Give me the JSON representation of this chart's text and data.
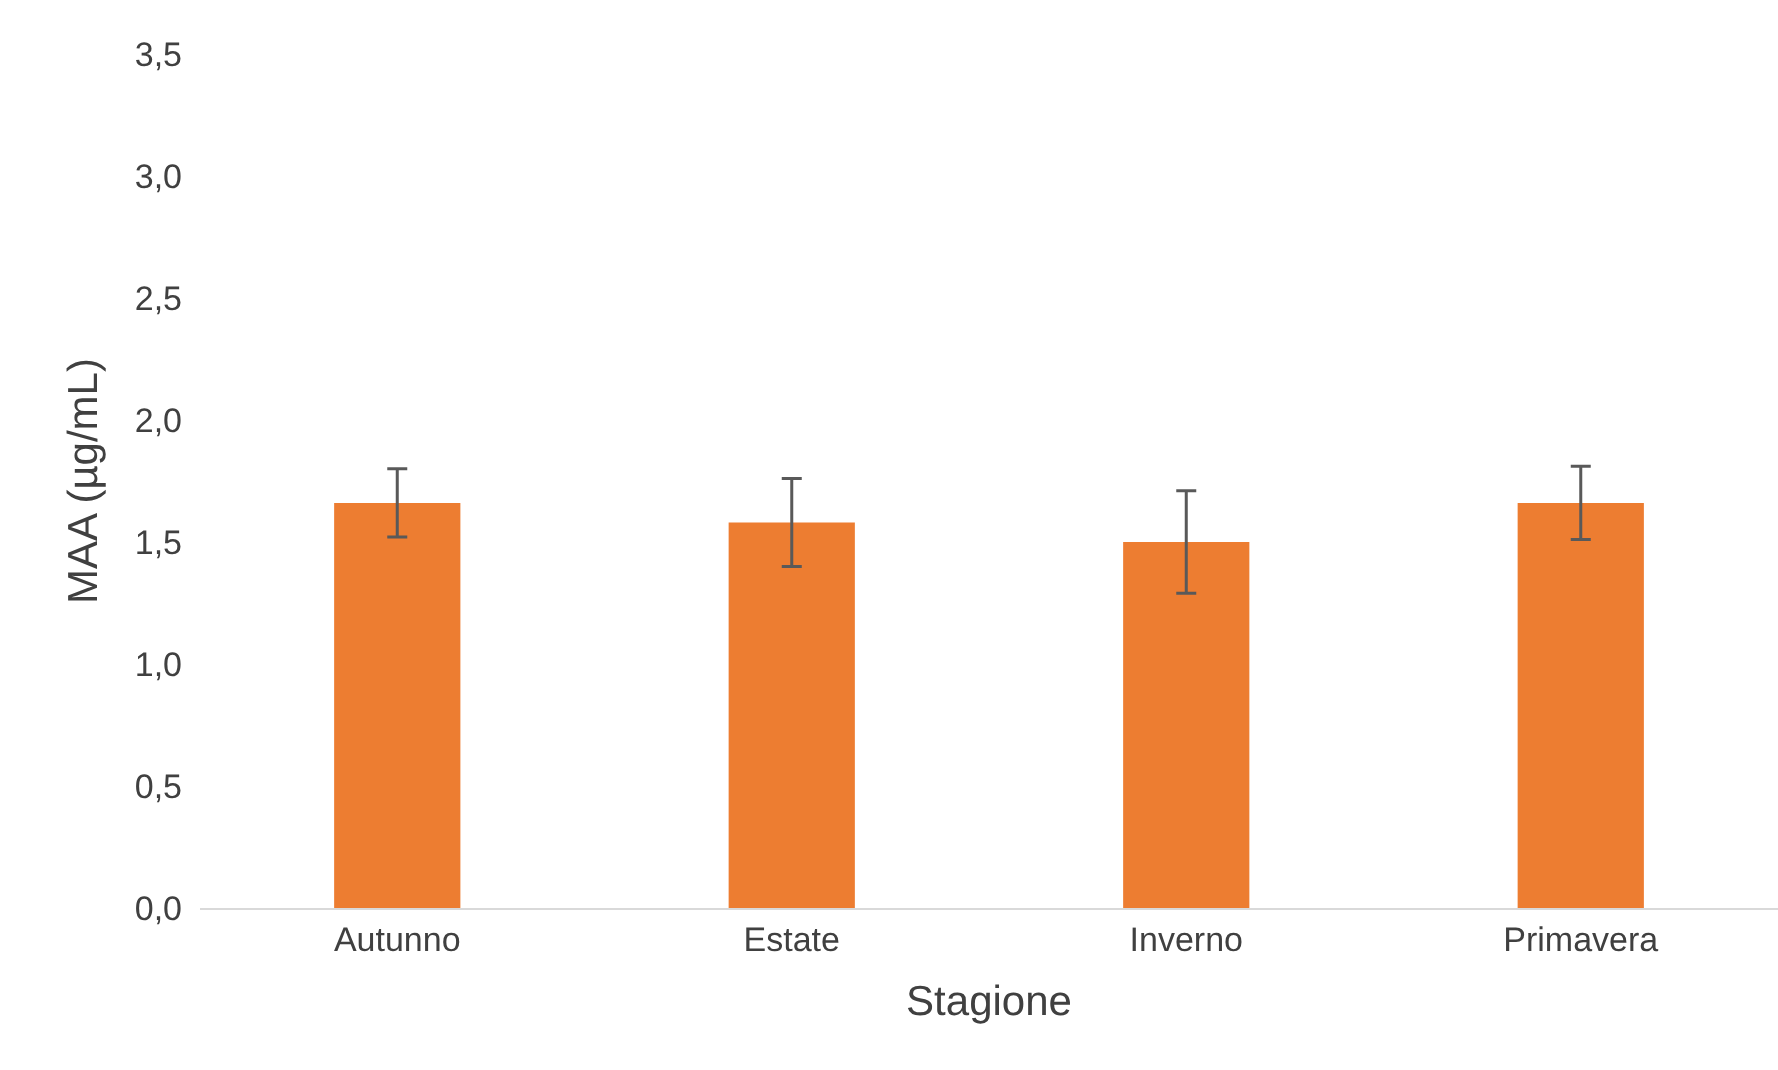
{
  "chart_data": {
    "type": "bar",
    "xlabel": "Stagione",
    "ylabel": "MAA (µg/mL)",
    "categories": [
      "Autunno",
      "Estate",
      "Inverno",
      "Primavera"
    ],
    "series": [
      {
        "color": "#ed7d31",
        "values": [
          1.66,
          1.58,
          1.5,
          1.66
        ],
        "errors": [
          0.14,
          0.18,
          0.21,
          0.15
        ]
      }
    ],
    "ylim": [
      0,
      3.5
    ],
    "yticks": [
      {
        "value": 0,
        "label": "0,0"
      },
      {
        "value": 0.5,
        "label": "0,5"
      },
      {
        "value": 1,
        "label": "1,0"
      },
      {
        "value": 1.5,
        "label": "1,5"
      },
      {
        "value": 2,
        "label": "2,0"
      },
      {
        "value": 2.5,
        "label": "2,5"
      },
      {
        "value": 3,
        "label": "3,0"
      },
      {
        "value": 3.5,
        "label": "3,5"
      }
    ],
    "grid": false
  }
}
